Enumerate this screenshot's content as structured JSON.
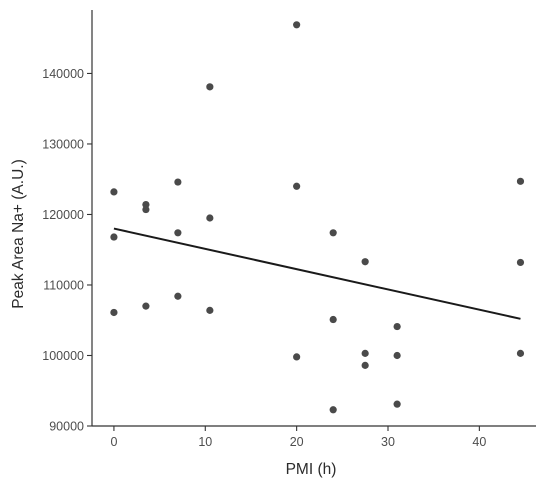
{
  "chart_data": {
    "type": "scatter",
    "title": "",
    "xlabel": "PMI (h)",
    "ylabel": "Peak Area Na+ (A.U.)",
    "xlim": [
      -2.4,
      46.2
    ],
    "ylim": [
      90000,
      149000
    ],
    "x_ticks": [
      0,
      10,
      20,
      30,
      40
    ],
    "y_ticks": [
      90000,
      100000,
      110000,
      120000,
      130000,
      140000
    ],
    "grid": false,
    "legend": "none",
    "point_color": "#4a4a4a",
    "line_color": "#1a1a1a",
    "points": [
      {
        "x": 0,
        "y": 123200
      },
      {
        "x": 0,
        "y": 116800
      },
      {
        "x": 0,
        "y": 106100
      },
      {
        "x": 3.5,
        "y": 121400
      },
      {
        "x": 3.5,
        "y": 120700
      },
      {
        "x": 3.5,
        "y": 107000
      },
      {
        "x": 7,
        "y": 124600
      },
      {
        "x": 7,
        "y": 117400
      },
      {
        "x": 7,
        "y": 108400
      },
      {
        "x": 10.5,
        "y": 138100
      },
      {
        "x": 10.5,
        "y": 119500
      },
      {
        "x": 10.5,
        "y": 106400
      },
      {
        "x": 20,
        "y": 146900
      },
      {
        "x": 20,
        "y": 124000
      },
      {
        "x": 20,
        "y": 99800
      },
      {
        "x": 24,
        "y": 117400
      },
      {
        "x": 24,
        "y": 105100
      },
      {
        "x": 24,
        "y": 92300
      },
      {
        "x": 27.5,
        "y": 113300
      },
      {
        "x": 27.5,
        "y": 100300
      },
      {
        "x": 27.5,
        "y": 98600
      },
      {
        "x": 31,
        "y": 104100
      },
      {
        "x": 31,
        "y": 100000
      },
      {
        "x": 31,
        "y": 93100
      },
      {
        "x": 44.5,
        "y": 124700
      },
      {
        "x": 44.5,
        "y": 113200
      },
      {
        "x": 44.5,
        "y": 100300
      }
    ],
    "trend_line": {
      "x": [
        0,
        44.5
      ],
      "y": [
        118000,
        105200
      ]
    }
  }
}
